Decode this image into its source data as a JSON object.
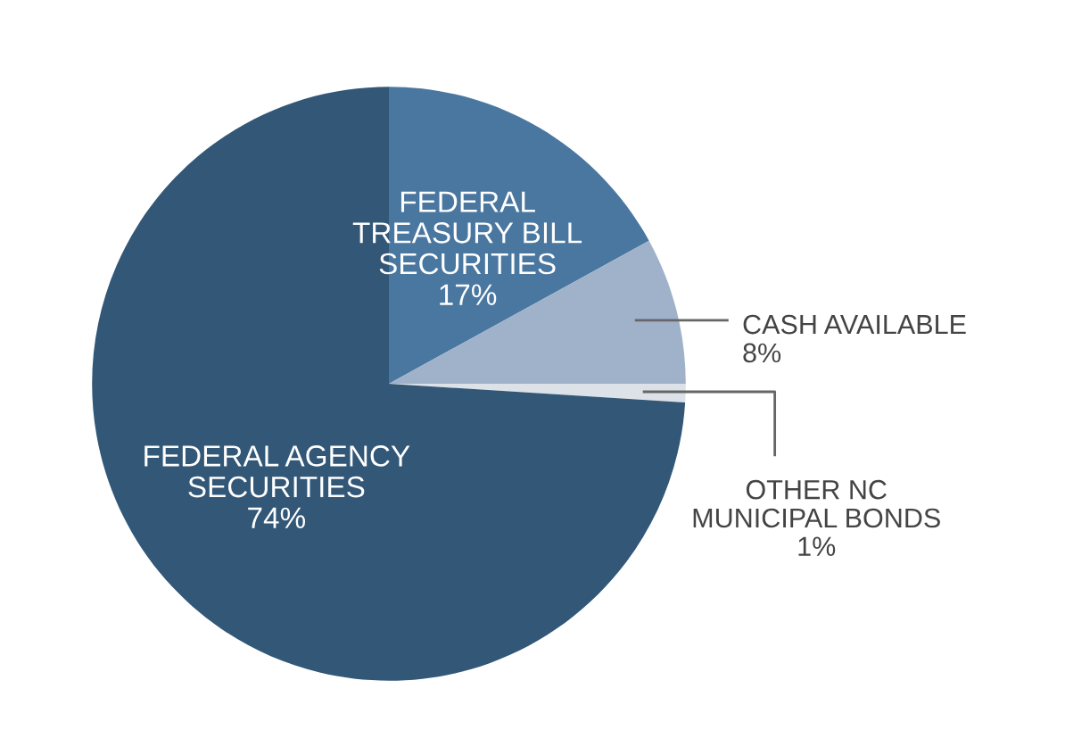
{
  "chart_data": {
    "type": "pie",
    "categories": [
      "FEDERAL\nTREASURY BILL\nSECURITIES",
      "CASH AVAILABLE",
      "OTHER NC\nMUNICIPAL BONDS",
      "FEDERAL AGENCY\nSECURITIES"
    ],
    "values": [
      17,
      8,
      1,
      74
    ],
    "value_labels": [
      "17%",
      "8%",
      "1%",
      "74%"
    ],
    "colors": [
      "#4a77a0",
      "#9fb2ca",
      "#dde2e8",
      "#325777"
    ],
    "legend": false
  }
}
